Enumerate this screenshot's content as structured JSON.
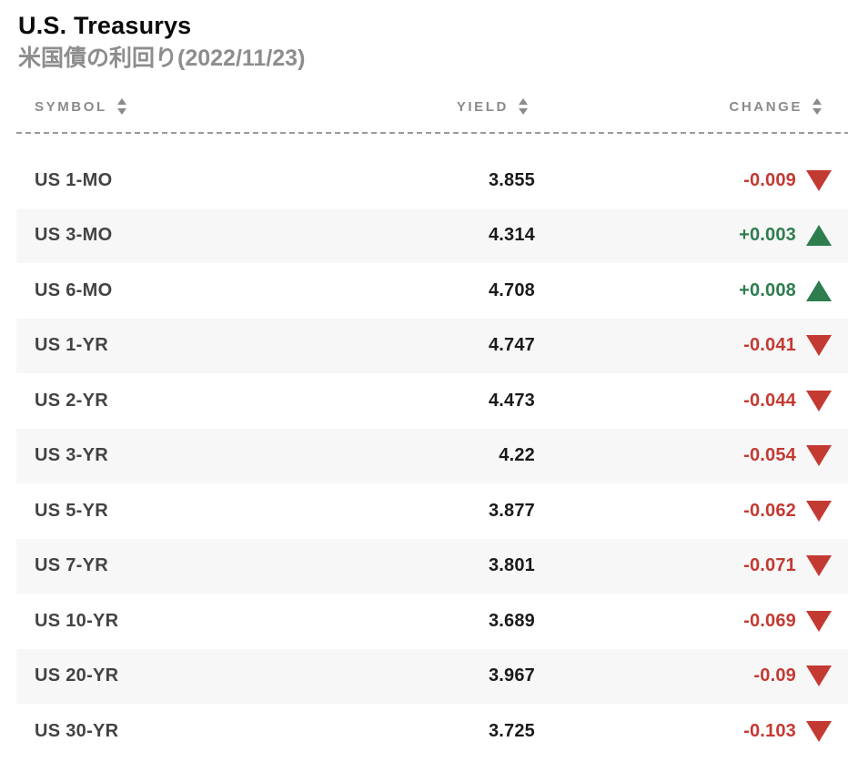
{
  "header": {
    "title": "U.S. Treasurys",
    "subtitle": "米国債の利回り(2022/11/23)"
  },
  "table": {
    "columns": {
      "symbol": "SYMBOL",
      "yield": "YIELD",
      "change": "CHANGE"
    },
    "rows": [
      {
        "symbol": "US 1-MO",
        "yield": "3.855",
        "change": "-0.009",
        "direction": "down"
      },
      {
        "symbol": "US 3-MO",
        "yield": "4.314",
        "change": "+0.003",
        "direction": "up"
      },
      {
        "symbol": "US 6-MO",
        "yield": "4.708",
        "change": "+0.008",
        "direction": "up"
      },
      {
        "symbol": "US 1-YR",
        "yield": "4.747",
        "change": "-0.041",
        "direction": "down"
      },
      {
        "symbol": "US 2-YR",
        "yield": "4.473",
        "change": "-0.044",
        "direction": "down"
      },
      {
        "symbol": "US 3-YR",
        "yield": "4.22",
        "change": "-0.054",
        "direction": "down"
      },
      {
        "symbol": "US 5-YR",
        "yield": "3.877",
        "change": "-0.062",
        "direction": "down"
      },
      {
        "symbol": "US 7-YR",
        "yield": "3.801",
        "change": "-0.071",
        "direction": "down"
      },
      {
        "symbol": "US 10-YR",
        "yield": "3.689",
        "change": "-0.069",
        "direction": "down"
      },
      {
        "symbol": "US 20-YR",
        "yield": "3.967",
        "change": "-0.09",
        "direction": "down"
      },
      {
        "symbol": "US 30-YR",
        "yield": "3.725",
        "change": "-0.103",
        "direction": "down"
      }
    ]
  },
  "colors": {
    "positive": "#2e7d4e",
    "negative": "#c33a32",
    "row_stripe": "#f7f7f7",
    "muted_text": "#8b8b8b"
  }
}
